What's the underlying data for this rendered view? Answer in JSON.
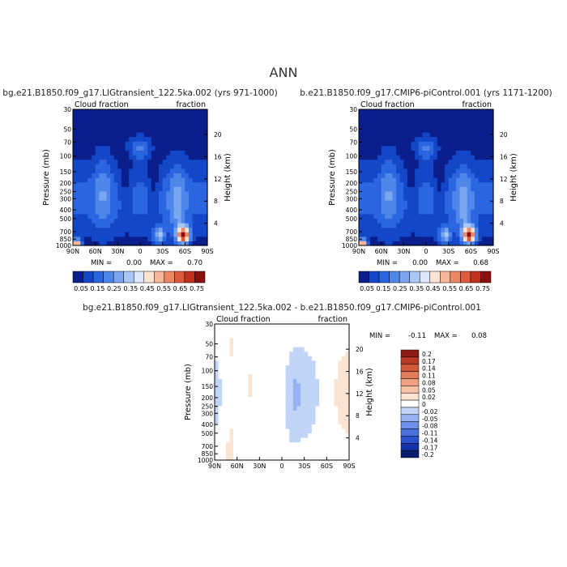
{
  "page_title": "ANN",
  "colors": {
    "scale_11": [
      "#0a1e8c",
      "#1446c8",
      "#2a66e0",
      "#4f86ea",
      "#7aa6f0",
      "#a8c6f6",
      "#dde8fa",
      "#fbe3d2",
      "#f6b79a",
      "#ee8764",
      "#de5a3c",
      "#c0301e",
      "#8a0f0f"
    ],
    "diff_scale": [
      "#0a1e6e",
      "#1432a8",
      "#2a50cc",
      "#4a70de",
      "#6e90ea",
      "#96b2f2",
      "#c0d4f8",
      "#ffffff",
      "#fbe3d2",
      "#f6c2a6",
      "#f0a080",
      "#e27c5a",
      "#d05a3a",
      "#b83a22",
      "#8c1a10"
    ]
  },
  "chart_data": [
    {
      "type": "heatmap",
      "title": "bg.e21.B1850.f09_g17.LIGtransient_122.5ka.002 (yrs 971-1000)",
      "subtitle_left": "Cloud fraction",
      "subtitle_right": "fraction",
      "ylabel": "Pressure (mb)",
      "ylabel_right": "Height (km)",
      "x_ticks": [
        "90N",
        "60N",
        "30N",
        "0",
        "30S",
        "60S",
        "90S"
      ],
      "y_ticks": [
        "1000",
        "850",
        "700",
        "500",
        "400",
        "300",
        "250",
        "200",
        "150",
        "100",
        "70",
        "50",
        "30"
      ],
      "y_ticks_right": [
        "4",
        "8",
        "12",
        "16",
        "20"
      ],
      "min_label": "MIN =",
      "min_value": "0.00",
      "max_label": "MAX =",
      "max_value": "0.70",
      "colorbar_labels": [
        "0.05",
        "0.15",
        "0.25",
        "0.35",
        "0.45",
        "0.55",
        "0.65",
        "0.75"
      ],
      "feature_levels": [
        0.02,
        0.05,
        0.12,
        0.55,
        0.7,
        0.45
      ]
    },
    {
      "type": "heatmap",
      "title": "b.e21.B1850.f09_g17.CMIP6-piControl.001 (yrs 1171-1200)",
      "subtitle_left": "Cloud fraction",
      "subtitle_right": "fraction",
      "ylabel": "Pressure (mb)",
      "ylabel_right": "Height (km)",
      "x_ticks": [
        "90N",
        "60N",
        "30N",
        "0",
        "30S",
        "60S",
        "90S"
      ],
      "y_ticks": [
        "1000",
        "850",
        "700",
        "500",
        "400",
        "300",
        "250",
        "200",
        "150",
        "100",
        "70",
        "50",
        "30"
      ],
      "y_ticks_right": [
        "4",
        "8",
        "12",
        "16",
        "20"
      ],
      "min_label": "MIN =",
      "min_value": "0.00",
      "max_label": "MAX =",
      "max_value": "0.68",
      "colorbar_labels": [
        "0.05",
        "0.15",
        "0.25",
        "0.35",
        "0.45",
        "0.55",
        "0.65",
        "0.75"
      ],
      "feature_levels": [
        0.02,
        0.05,
        0.12,
        0.55,
        0.68,
        0.45
      ]
    },
    {
      "type": "heatmap",
      "title": "bg.e21.B1850.f09_g17.LIGtransient_122.5ka.002 - b.e21.B1850.f09_g17.CMIP6-piControl.001",
      "subtitle_left": "Cloud fraction",
      "subtitle_right": "fraction",
      "ylabel": "Pressure (mb)",
      "ylabel_right": "Height (km)",
      "x_ticks": [
        "90N",
        "60N",
        "30N",
        "0",
        "30S",
        "60S",
        "90S"
      ],
      "y_ticks": [
        "1000",
        "850",
        "700",
        "500",
        "400",
        "300",
        "250",
        "200",
        "150",
        "100",
        "70",
        "50",
        "30"
      ],
      "y_ticks_right": [
        "4",
        "8",
        "12",
        "16",
        "20"
      ],
      "min_label": "MIN =",
      "min_value": "-0.11",
      "max_label": "MAX =",
      "max_value": "0.08",
      "colorbar_labels": [
        "0.2",
        "0.17",
        "0.14",
        "0.11",
        "0.08",
        "0.05",
        "0.02",
        "0",
        "-0.02",
        "-0.05",
        "-0.08",
        "-0.11",
        "-0.14",
        "-0.17",
        "-0.2"
      ]
    }
  ]
}
